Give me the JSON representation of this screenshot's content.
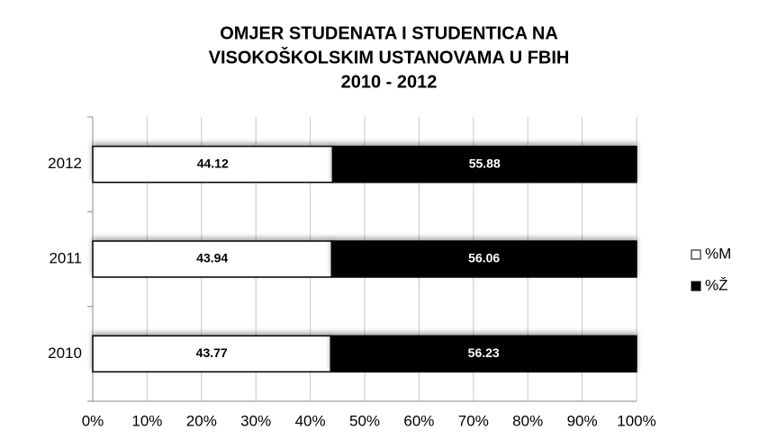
{
  "chart_data": {
    "type": "stacked_bar_horizontal",
    "title": [
      "OMJER STUDENATA I STUDENTICA NA",
      "VISOKOŠKOLSKIM USTANOVAMA U FBIH",
      "2010 - 2012"
    ],
    "categories": [
      "2010",
      "2011",
      "2012"
    ],
    "series": [
      {
        "name": "%M",
        "color": "#ffffff",
        "values": [
          43.77,
          43.94,
          44.12
        ]
      },
      {
        "name": "%Ž",
        "color": "#000000",
        "values": [
          56.23,
          56.06,
          55.88
        ]
      }
    ],
    "xlim": [
      0,
      100
    ],
    "xticks": [
      {
        "value": 0,
        "label": "0%"
      },
      {
        "value": 10,
        "label": "10%"
      },
      {
        "value": 20,
        "label": "20%"
      },
      {
        "value": 30,
        "label": "30%"
      },
      {
        "value": 40,
        "label": "40%"
      },
      {
        "value": 50,
        "label": "50%"
      },
      {
        "value": 60,
        "label": "60%"
      },
      {
        "value": 70,
        "label": "70%"
      },
      {
        "value": 80,
        "label": "80%"
      },
      {
        "value": 90,
        "label": "90%"
      },
      {
        "value": 100,
        "label": "100%"
      }
    ],
    "grid": true,
    "legend": "right"
  }
}
